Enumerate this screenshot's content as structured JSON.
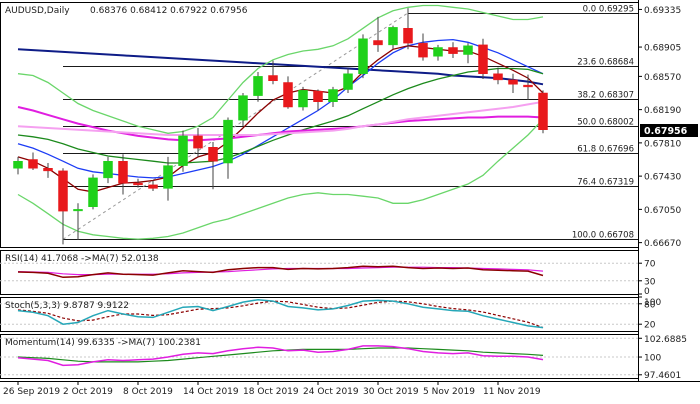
{
  "colors": {
    "bull": "#1fd11a",
    "bear": "#e8191c",
    "wick": "#404040",
    "grid": "#c8c8c8",
    "boll": "#6ad66a",
    "navy": "#0e1c87",
    "blue": "#1c3cf5",
    "darkred": "#8b0000",
    "green": "#1c8a1c",
    "magenta": "#e01ee0",
    "pink": "#f5a0f0",
    "fib_line": "#1a1a1a",
    "diag": "#9a9a9a",
    "rsi_main": "#8b0000",
    "rsi_sig": "#e01ee0",
    "stoch_main": "#25a7b8",
    "stoch_sig": "#8b0000",
    "mom_main": "#e01ee0",
    "mom_sig": "#1c8a1c",
    "axis_text": "#202020",
    "price_tag_bg": "#000000",
    "price_tag_fg": "#ffffff"
  },
  "chart_data": {
    "type": "candlestick",
    "symbol_label": "AUDUSD,Daily",
    "ohlc_label": "0.68376 0.68412 0.67922 0.67956",
    "current_price": "0.67956",
    "y_ticks": [
      "0.69335",
      "0.68905",
      "0.68570",
      "0.68190",
      "0.67810",
      "0.67430",
      "0.67050",
      "0.66670"
    ],
    "y_tick_values": [
      0.69335,
      0.68905,
      0.6857,
      0.6819,
      0.6781,
      0.6743,
      0.6705,
      0.6667
    ],
    "ylim": [
      0.6662,
      0.6942
    ],
    "x_labels": [
      "26 Sep 2019",
      "2 Oct 2019",
      "8 Oct 2019",
      "14 Oct 2019",
      "18 Oct 2019",
      "24 Oct 2019",
      "30 Oct 2019",
      "5 Nov 2019",
      "11 Nov 2019"
    ],
    "x_label_index": [
      0,
      4,
      8,
      12,
      16,
      20,
      24,
      28,
      32
    ],
    "candles": [
      {
        "o": 0.6752,
        "h": 0.6765,
        "l": 0.6745,
        "c": 0.676
      },
      {
        "o": 0.6762,
        "h": 0.677,
        "l": 0.675,
        "c": 0.6752
      },
      {
        "o": 0.6752,
        "h": 0.6758,
        "l": 0.6741,
        "c": 0.6749
      },
      {
        "o": 0.6749,
        "h": 0.6752,
        "l": 0.6665,
        "c": 0.6703
      },
      {
        "o": 0.6704,
        "h": 0.6712,
        "l": 0.667,
        "c": 0.6705
      },
      {
        "o": 0.6708,
        "h": 0.6745,
        "l": 0.6705,
        "c": 0.6741
      },
      {
        "o": 0.6741,
        "h": 0.6765,
        "l": 0.6735,
        "c": 0.676
      },
      {
        "o": 0.676,
        "h": 0.6768,
        "l": 0.6722,
        "c": 0.6735
      },
      {
        "o": 0.6735,
        "h": 0.674,
        "l": 0.673,
        "c": 0.6733
      },
      {
        "o": 0.6733,
        "h": 0.6738,
        "l": 0.6726,
        "c": 0.6729
      },
      {
        "o": 0.6729,
        "h": 0.6765,
        "l": 0.6715,
        "c": 0.6755
      },
      {
        "o": 0.6755,
        "h": 0.6795,
        "l": 0.6748,
        "c": 0.6789
      },
      {
        "o": 0.6789,
        "h": 0.6798,
        "l": 0.6765,
        "c": 0.6775
      },
      {
        "o": 0.6776,
        "h": 0.6782,
        "l": 0.6728,
        "c": 0.676
      },
      {
        "o": 0.6758,
        "h": 0.681,
        "l": 0.674,
        "c": 0.6807
      },
      {
        "o": 0.6807,
        "h": 0.6838,
        "l": 0.68,
        "c": 0.6835
      },
      {
        "o": 0.6835,
        "h": 0.6862,
        "l": 0.6828,
        "c": 0.6857
      },
      {
        "o": 0.6858,
        "h": 0.6875,
        "l": 0.6848,
        "c": 0.6852
      },
      {
        "o": 0.685,
        "h": 0.6857,
        "l": 0.682,
        "c": 0.6822
      },
      {
        "o": 0.6822,
        "h": 0.6845,
        "l": 0.6818,
        "c": 0.6841
      },
      {
        "o": 0.684,
        "h": 0.6842,
        "l": 0.6818,
        "c": 0.6828
      },
      {
        "o": 0.6828,
        "h": 0.6845,
        "l": 0.6822,
        "c": 0.6842
      },
      {
        "o": 0.6842,
        "h": 0.6866,
        "l": 0.6838,
        "c": 0.686
      },
      {
        "o": 0.686,
        "h": 0.6905,
        "l": 0.6855,
        "c": 0.69
      },
      {
        "o": 0.6898,
        "h": 0.6925,
        "l": 0.6885,
        "c": 0.6893
      },
      {
        "o": 0.6893,
        "h": 0.6915,
        "l": 0.6888,
        "c": 0.6913
      },
      {
        "o": 0.6912,
        "h": 0.6935,
        "l": 0.6888,
        "c": 0.6895
      },
      {
        "o": 0.6895,
        "h": 0.6906,
        "l": 0.6875,
        "c": 0.6879
      },
      {
        "o": 0.688,
        "h": 0.6893,
        "l": 0.6875,
        "c": 0.689
      },
      {
        "o": 0.689,
        "h": 0.6896,
        "l": 0.6878,
        "c": 0.6883
      },
      {
        "o": 0.6882,
        "h": 0.6895,
        "l": 0.6872,
        "c": 0.6892
      },
      {
        "o": 0.6893,
        "h": 0.69,
        "l": 0.6854,
        "c": 0.686
      },
      {
        "o": 0.686,
        "h": 0.6867,
        "l": 0.6848,
        "c": 0.6853
      },
      {
        "o": 0.6853,
        "h": 0.686,
        "l": 0.6838,
        "c": 0.6848
      },
      {
        "o": 0.6847,
        "h": 0.6859,
        "l": 0.683,
        "c": 0.6845
      },
      {
        "o": 0.6838,
        "h": 0.6841,
        "l": 0.6792,
        "c": 0.6796
      }
    ],
    "overlays": [
      {
        "color_key": "navy",
        "values": [
          0.6888,
          0.6887,
          0.6886,
          0.6885,
          0.6884,
          0.6883,
          0.6882,
          0.6881,
          0.688,
          0.6879,
          0.6878,
          0.6877,
          0.6876,
          0.6875,
          0.6874,
          0.6873,
          0.6872,
          0.6871,
          0.687,
          0.6869,
          0.6868,
          0.6867,
          0.6866,
          0.6865,
          0.6864,
          0.6863,
          0.6862,
          0.6861,
          0.686,
          0.6858,
          0.6857,
          0.6856,
          0.6855,
          0.6853,
          0.6851,
          0.6848
        ]
      },
      {
        "color_key": "blue",
        "values": [
          0.678,
          0.6775,
          0.6768,
          0.676,
          0.6752,
          0.6748,
          0.6746,
          0.6744,
          0.6742,
          0.6741,
          0.6742,
          0.6746,
          0.675,
          0.6754,
          0.676,
          0.6768,
          0.6778,
          0.6788,
          0.6798,
          0.6808,
          0.6818,
          0.683,
          0.6845,
          0.6858,
          0.6872,
          0.6884,
          0.6892,
          0.6896,
          0.6898,
          0.6899,
          0.6896,
          0.689,
          0.6884,
          0.6876,
          0.6868,
          0.686
        ]
      },
      {
        "color_key": "darkred",
        "values": [
          0.6765,
          0.676,
          0.6752,
          0.674,
          0.6728,
          0.6725,
          0.673,
          0.6735,
          0.6736,
          0.6738,
          0.6742,
          0.6755,
          0.6765,
          0.677,
          0.6782,
          0.6798,
          0.6815,
          0.683,
          0.6838,
          0.6842,
          0.684,
          0.6838,
          0.6845,
          0.6862,
          0.6876,
          0.6888,
          0.6892,
          0.689,
          0.6888,
          0.6886,
          0.6886,
          0.688,
          0.6872,
          0.6864,
          0.6855,
          0.6838
        ]
      },
      {
        "color_key": "green",
        "values": [
          0.679,
          0.6788,
          0.6785,
          0.678,
          0.6774,
          0.677,
          0.6766,
          0.6764,
          0.6762,
          0.676,
          0.6758,
          0.6758,
          0.6759,
          0.676,
          0.6764,
          0.677,
          0.6777,
          0.6784,
          0.679,
          0.6796,
          0.6801,
          0.6806,
          0.6812,
          0.682,
          0.6828,
          0.6836,
          0.6843,
          0.6849,
          0.6854,
          0.6858,
          0.6862,
          0.6864,
          0.6866,
          0.6866,
          0.6865,
          0.686
        ]
      },
      {
        "color_key": "magenta",
        "values": [
          0.6822,
          0.6818,
          0.6813,
          0.6808,
          0.6803,
          0.6799,
          0.6795,
          0.6792,
          0.6789,
          0.6787,
          0.6785,
          0.6784,
          0.6784,
          0.6785,
          0.6786,
          0.6788,
          0.679,
          0.6792,
          0.6794,
          0.6795,
          0.6796,
          0.6797,
          0.6798,
          0.68,
          0.6802,
          0.6804,
          0.6806,
          0.6807,
          0.6808,
          0.6809,
          0.681,
          0.681,
          0.6811,
          0.6811,
          0.6811,
          0.681
        ]
      },
      {
        "color_key": "pink",
        "values": [
          0.68,
          0.6799,
          0.6798,
          0.6797,
          0.6796,
          0.6795,
          0.6794,
          0.6793,
          0.6792,
          0.6791,
          0.679,
          0.679,
          0.679,
          0.679,
          0.679,
          0.679,
          0.679,
          0.6791,
          0.6792,
          0.6793,
          0.6794,
          0.6795,
          0.6797,
          0.68,
          0.6802,
          0.6805,
          0.6808,
          0.681,
          0.6812,
          0.6814,
          0.6816,
          0.6818,
          0.682,
          0.6822,
          0.6825,
          0.6828
        ]
      },
      {
        "color_key": "boll",
        "values": [
          0.686,
          0.6858,
          0.685,
          0.6838,
          0.6826,
          0.6818,
          0.6812,
          0.6806,
          0.68,
          0.6796,
          0.6792,
          0.6794,
          0.68,
          0.681,
          0.683,
          0.685,
          0.6866,
          0.6876,
          0.6882,
          0.6886,
          0.6888,
          0.6892,
          0.69,
          0.6912,
          0.6924,
          0.6932,
          0.6936,
          0.6938,
          0.6938,
          0.6936,
          0.6934,
          0.693,
          0.6926,
          0.6922,
          0.6922,
          0.6925
        ]
      },
      {
        "color_key": "boll",
        "values": [
          0.6722,
          0.6712,
          0.67,
          0.6688,
          0.668,
          0.6676,
          0.6674,
          0.6672,
          0.6671,
          0.6672,
          0.6674,
          0.6678,
          0.6684,
          0.669,
          0.6694,
          0.67,
          0.6706,
          0.6712,
          0.6718,
          0.6722,
          0.6724,
          0.6722,
          0.6722,
          0.672,
          0.6718,
          0.6712,
          0.6712,
          0.6716,
          0.6722,
          0.6728,
          0.6734,
          0.6744,
          0.676,
          0.6775,
          0.679,
          0.6808
        ]
      }
    ],
    "fib_levels": [
      {
        "label": "0.0 0.69295",
        "value": 0.69295
      },
      {
        "label": "23.6 0.68684",
        "value": 0.68684
      },
      {
        "label": "38.2 0.68307",
        "value": 0.68307
      },
      {
        "label": "50.0 0.68002",
        "value": 0.68002
      },
      {
        "label": "61.8 0.67696",
        "value": 0.67696
      },
      {
        "label": "76.4 0.67319",
        "value": 0.67319
      },
      {
        "label": "100.0 0.66708",
        "value": 0.66708
      }
    ],
    "rsi": {
      "label": "RSI(14) 41.7068 ->MA(7) 52.0138",
      "ticks": [
        "70",
        "30",
        "0"
      ],
      "tick_values": [
        70,
        30,
        0
      ],
      "ylim": [
        0,
        100
      ],
      "main": [
        50,
        49,
        47,
        38,
        39,
        44,
        48,
        45,
        44,
        43,
        48,
        53,
        51,
        49,
        55,
        58,
        60,
        60,
        56,
        58,
        57,
        58,
        60,
        63,
        62,
        63,
        60,
        58,
        59,
        58,
        59,
        55,
        54,
        53,
        52,
        42
      ],
      "signal": [
        51,
        50,
        49,
        46,
        44,
        44,
        45,
        45,
        45,
        45,
        46,
        48,
        49,
        50,
        51,
        53,
        55,
        57,
        58,
        58,
        58,
        58,
        58,
        59,
        60,
        61,
        61,
        61,
        60,
        60,
        59,
        58,
        57,
        56,
        55,
        52
      ]
    },
    "stoch": {
      "label": "Stoch(5,3,3) 9.8787 9.9122",
      "ticks": [
        "100",
        "80",
        "20"
      ],
      "tick_values": [
        100,
        80,
        20
      ],
      "ylim": [
        0,
        100
      ],
      "main": [
        60,
        55,
        45,
        20,
        25,
        45,
        60,
        50,
        42,
        40,
        55,
        70,
        72,
        60,
        72,
        85,
        92,
        88,
        72,
        68,
        62,
        65,
        75,
        88,
        90,
        88,
        80,
        70,
        65,
        60,
        58,
        45,
        35,
        25,
        15,
        10
      ],
      "signal": [
        62,
        58,
        52,
        38,
        30,
        32,
        42,
        50,
        50,
        46,
        48,
        56,
        64,
        66,
        68,
        74,
        82,
        88,
        86,
        78,
        70,
        66,
        68,
        76,
        84,
        88,
        86,
        80,
        72,
        66,
        62,
        56,
        46,
        36,
        26,
        10
      ]
    },
    "momentum": {
      "label": "Momentum(14) 99.6335 ->MA(7) 100.2381",
      "ticks": [
        "102.6885",
        "100",
        "97.4601"
      ],
      "tick_values": [
        102.6885,
        100,
        97.4601
      ],
      "ylim": [
        97.0,
        103.3
      ],
      "main": [
        99.9,
        99.7,
        99.5,
        98.8,
        98.9,
        99.3,
        99.6,
        99.5,
        99.6,
        99.7,
        100.0,
        100.4,
        100.6,
        100.5,
        100.9,
        101.2,
        101.4,
        101.3,
        100.9,
        101.0,
        100.7,
        100.8,
        101.1,
        101.6,
        101.6,
        101.5,
        101.2,
        100.8,
        100.6,
        100.5,
        100.6,
        100.2,
        100.1,
        100.1,
        100.0,
        99.63
      ],
      "signal": [
        100.0,
        99.9,
        99.8,
        99.6,
        99.4,
        99.3,
        99.3,
        99.3,
        99.3,
        99.4,
        99.5,
        99.7,
        99.9,
        100.1,
        100.3,
        100.5,
        100.7,
        100.9,
        101.0,
        101.1,
        101.1,
        101.1,
        101.1,
        101.2,
        101.3,
        101.3,
        101.3,
        101.2,
        101.1,
        101.0,
        100.9,
        100.7,
        100.6,
        100.5,
        100.4,
        100.24
      ]
    }
  }
}
